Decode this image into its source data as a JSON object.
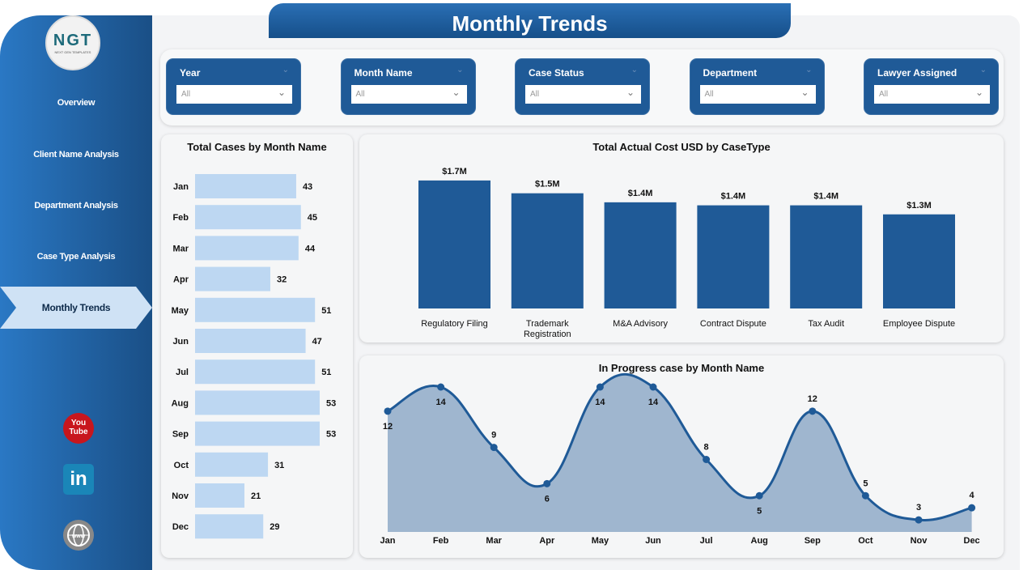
{
  "title": "Monthly Trends",
  "logo": {
    "text": "NGT",
    "subtext": "NEXT GEN TEMPLATES"
  },
  "sidebar": {
    "items": [
      {
        "label": "Overview"
      },
      {
        "label": "Client Name Analysis"
      },
      {
        "label": "Department Analysis"
      },
      {
        "label": "Case Type Analysis"
      },
      {
        "label": "Monthly Trends",
        "active": true
      }
    ],
    "social": [
      {
        "icon": "youtube-icon"
      },
      {
        "icon": "linkedin-icon"
      },
      {
        "icon": "website-icon"
      }
    ]
  },
  "filters": [
    {
      "label": "Year",
      "value": "All"
    },
    {
      "label": "Month Name",
      "value": "All"
    },
    {
      "label": "Case Status",
      "value": "All"
    },
    {
      "label": "Department",
      "value": "All"
    },
    {
      "label": "Lawyer Assigned",
      "value": "All"
    }
  ],
  "colors": {
    "accent": "#1f5a97",
    "bar_light": "#bdd7f2",
    "bar_dark": "#1f5a97",
    "area": "#9fb6cf",
    "line": "#1f5a97"
  },
  "chart_data": [
    {
      "type": "bar",
      "orientation": "horizontal",
      "title": "Total Cases by Month Name",
      "categories": [
        "Jan",
        "Feb",
        "Mar",
        "Apr",
        "May",
        "Jun",
        "Jul",
        "Aug",
        "Sep",
        "Oct",
        "Nov",
        "Dec"
      ],
      "values": [
        43,
        45,
        44,
        32,
        51,
        47,
        51,
        53,
        53,
        31,
        21,
        29
      ],
      "data_labels": true
    },
    {
      "type": "bar",
      "title": "Total Actual Cost USD by CaseType",
      "categories": [
        "Regulatory Filing",
        "Trademark Registration",
        "M&A Advisory",
        "Contract Dispute",
        "Tax Audit",
        "Employee Dispute"
      ],
      "values": [
        1.7,
        1.53,
        1.41,
        1.37,
        1.37,
        1.25
      ],
      "labels": [
        "$1.7M",
        "$1.5M",
        "$1.4M",
        "$1.4M",
        "$1.4M",
        "$1.3M"
      ],
      "unit": "USD millions"
    },
    {
      "type": "area",
      "title": "In Progress case by Month Name",
      "categories": [
        "Jan",
        "Feb",
        "Mar",
        "Apr",
        "May",
        "Jun",
        "Jul",
        "Aug",
        "Sep",
        "Oct",
        "Nov",
        "Dec"
      ],
      "values": [
        12,
        14,
        9,
        6,
        14,
        14,
        8,
        5,
        12,
        5,
        3,
        4
      ],
      "ylim": [
        2,
        14
      ],
      "smooth": true,
      "markers": true
    }
  ]
}
